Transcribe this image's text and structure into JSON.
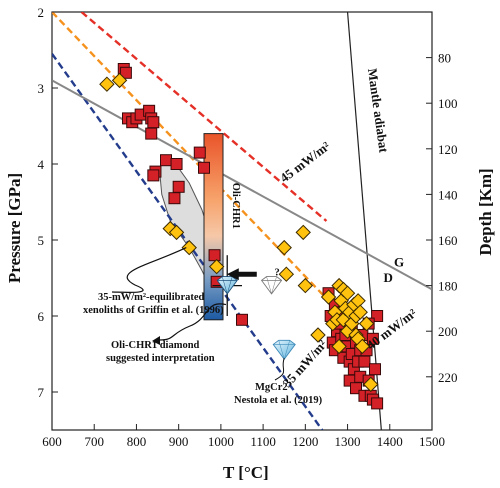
{
  "chart_data": {
    "type": "scatter",
    "xlabel": "T [°C]",
    "ylabel": "Pressure [GPa]",
    "y2label": "Depth [Km]",
    "xlim": [
      600,
      1500
    ],
    "ylim": [
      2,
      7.5
    ],
    "y_inverted": true,
    "x_ticks": [
      "600",
      "700",
      "800",
      "900",
      "1000",
      "1100",
      "1200",
      "1300",
      "1400",
      "1500"
    ],
    "y_ticks": [
      "2",
      "3",
      "4",
      "5",
      "6",
      "7"
    ],
    "depth_ticks": [
      "80",
      "100",
      "120",
      "140",
      "160",
      "180",
      "200",
      "220"
    ],
    "depth_tick_pressures": [
      2.6,
      3.2,
      3.8,
      4.4,
      5.0,
      5.6,
      6.2,
      6.8
    ],
    "colors": {
      "square": "#d42027",
      "diamond_marker": "#ffc20e",
      "line_45": "#e53027",
      "line_40": "#f5921e",
      "line_35": "#233c8c",
      "graphite_diamond": "#888888",
      "adiabat": "#222222"
    },
    "lines": [
      {
        "label": "45 mW/m²",
        "color": "#e53027",
        "dash": true,
        "points": [
          [
            670,
            2.0
          ],
          [
            1250,
            4.75
          ]
        ]
      },
      {
        "label": "40 mW/m²",
        "color": "#f5921e",
        "dash": true,
        "points": [
          [
            600,
            2.0
          ],
          [
            1350,
            6.35
          ]
        ]
      },
      {
        "label": "35 mW/m²",
        "color": "#233c8c",
        "dash": true,
        "points": [
          [
            600,
            2.55
          ],
          [
            1240,
            7.5
          ]
        ]
      },
      {
        "label": "Mantle adiabat",
        "color": "#222222",
        "dash": false,
        "points": [
          [
            1300,
            2.0
          ],
          [
            1380,
            7.5
          ]
        ]
      },
      {
        "label": "G",
        "color": "#888888",
        "dash": false,
        "points": [
          [
            600,
            2.9
          ],
          [
            1500,
            5.65
          ]
        ]
      }
    ],
    "region_labels": {
      "G": "G",
      "D": "D"
    },
    "squares": [
      [
        770,
        2.75
      ],
      [
        775,
        2.8
      ],
      [
        780,
        3.4
      ],
      [
        790,
        3.45
      ],
      [
        800,
        3.4
      ],
      [
        810,
        3.35
      ],
      [
        830,
        3.3
      ],
      [
        835,
        3.4
      ],
      [
        835,
        3.6
      ],
      [
        840,
        3.45
      ],
      [
        845,
        4.1
      ],
      [
        840,
        4.15
      ],
      [
        870,
        3.95
      ],
      [
        895,
        4.0
      ],
      [
        890,
        4.45
      ],
      [
        900,
        4.3
      ],
      [
        950,
        3.85
      ],
      [
        960,
        4.05
      ],
      [
        985,
        5.2
      ],
      [
        990,
        5.55
      ],
      [
        1050,
        6.05
      ],
      [
        1255,
        5.7
      ],
      [
        1260,
        6.0
      ],
      [
        1270,
        5.85
      ],
      [
        1275,
        6.2
      ],
      [
        1265,
        6.35
      ],
      [
        1270,
        6.45
      ],
      [
        1280,
        6.1
      ],
      [
        1285,
        6.3
      ],
      [
        1290,
        5.95
      ],
      [
        1290,
        6.55
      ],
      [
        1295,
        6.25
      ],
      [
        1300,
        6.05
      ],
      [
        1300,
        6.4
      ],
      [
        1305,
        6.6
      ],
      [
        1305,
        6.85
      ],
      [
        1310,
        6.2
      ],
      [
        1310,
        6.5
      ],
      [
        1315,
        6.7
      ],
      [
        1320,
        6.35
      ],
      [
        1320,
        6.95
      ],
      [
        1325,
        6.6
      ],
      [
        1330,
        6.45
      ],
      [
        1330,
        6.8
      ],
      [
        1335,
        6.25
      ],
      [
        1340,
        6.6
      ],
      [
        1340,
        7.05
      ],
      [
        1345,
        6.45
      ],
      [
        1350,
        6.85
      ],
      [
        1355,
        7.05
      ],
      [
        1360,
        7.1
      ],
      [
        1365,
        6.7
      ],
      [
        1370,
        6.0
      ],
      [
        1370,
        7.15
      ],
      [
        1360,
        6.3
      ],
      [
        1350,
        6.1
      ]
    ],
    "diamond_markers": [
      [
        730,
        2.95
      ],
      [
        760,
        2.9
      ],
      [
        880,
        4.85
      ],
      [
        895,
        4.9
      ],
      [
        925,
        5.1
      ],
      [
        990,
        5.35
      ],
      [
        1150,
        5.1
      ],
      [
        1155,
        5.45
      ],
      [
        1195,
        4.9
      ],
      [
        1200,
        5.6
      ],
      [
        1255,
        5.75
      ],
      [
        1265,
        6.1
      ],
      [
        1270,
        5.95
      ],
      [
        1275,
        6.05
      ],
      [
        1280,
        5.6
      ],
      [
        1280,
        6.4
      ],
      [
        1285,
        5.8
      ],
      [
        1290,
        5.65
      ],
      [
        1290,
        6.05
      ],
      [
        1295,
        5.9
      ],
      [
        1300,
        5.7
      ],
      [
        1300,
        6.2
      ],
      [
        1305,
        5.95
      ],
      [
        1310,
        6.1
      ],
      [
        1315,
        5.85
      ],
      [
        1320,
        6.0
      ],
      [
        1320,
        6.25
      ],
      [
        1325,
        5.8
      ],
      [
        1325,
        6.3
      ],
      [
        1330,
        5.95
      ],
      [
        1335,
        6.4
      ],
      [
        1345,
        6.1
      ],
      [
        1355,
        6.9
      ],
      [
        1230,
        6.25
      ]
    ],
    "envelope": [
      [
        860,
        3.95
      ],
      [
        880,
        3.9
      ],
      [
        925,
        4.25
      ],
      [
        955,
        4.6
      ],
      [
        975,
        4.95
      ],
      [
        995,
        5.3
      ],
      [
        1005,
        5.7
      ],
      [
        985,
        5.75
      ],
      [
        955,
        5.4
      ],
      [
        925,
        5.1
      ],
      [
        880,
        4.75
      ],
      [
        860,
        4.4
      ],
      [
        855,
        4.1
      ]
    ],
    "oli_chr1_bar": {
      "label": "Oli-CHR1",
      "t_min": 960,
      "t_max": 1005,
      "p_min": 3.6,
      "p_max": 6.05
    },
    "oli_chr1_diamond": {
      "t": 1015,
      "p": 5.6,
      "terr": 35,
      "perr": 0.4
    },
    "graphite_diamond_icon": {
      "t": 1120,
      "p": 5.6,
      "label": "?"
    },
    "mgcr2_diamond": {
      "t": 1150,
      "p": 6.45
    },
    "annotations": {
      "griffin_l1": "35-mW/m²-equilibrated",
      "griffin_l2": "xenoliths of Griffin et al. (1996)",
      "oli_l1": "Oli-CHR1 diamond",
      "oli_l2": "suggested interpretation",
      "mgcr2_l1": "MgCr2",
      "mgcr2_l2": "Nestola et al. (2019)"
    }
  }
}
